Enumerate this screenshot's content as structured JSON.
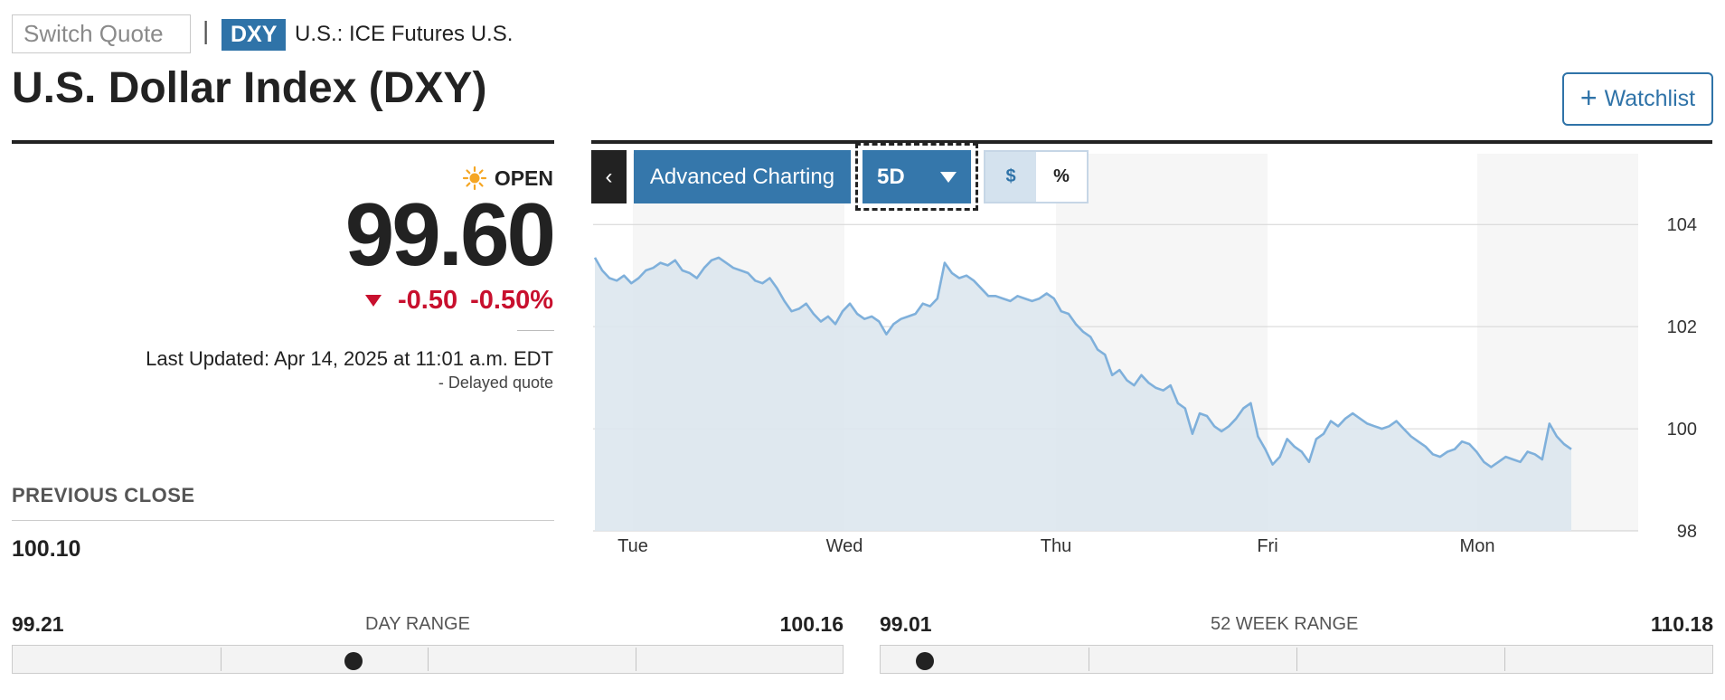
{
  "header": {
    "switch_quote_placeholder": "Switch Quote",
    "separator": "|",
    "ticker": "DXY",
    "exchange": "U.S.: ICE Futures U.S.",
    "title": "U.S. Dollar Index (DXY)",
    "watchlist_plus": "+",
    "watchlist_label": "Watchlist"
  },
  "quote": {
    "status": "OPEN",
    "price": "99.60",
    "change": "-0.50",
    "change_percent": "-0.50%",
    "last_updated": "Last Updated: Apr 14, 2025 at 11:01 a.m. EDT",
    "delayed": "-  Delayed quote"
  },
  "previous_close": {
    "label": "PREVIOUS CLOSE",
    "value": "100.10"
  },
  "day_range": {
    "low": "99.21",
    "label": "DAY RANGE",
    "high": "100.16",
    "current": 99.6
  },
  "week52_range": {
    "low": "99.01",
    "label": "52 WEEK RANGE",
    "high": "110.18",
    "current": 99.6
  },
  "chart_controls": {
    "back": "‹",
    "advanced": "Advanced Charting",
    "period": "5D",
    "unit_dollar": "$",
    "unit_percent": "%"
  },
  "colors": {
    "accent": "#2f73a8",
    "negative": "#c8102e",
    "line": "#7fb0db",
    "fill": "#dde7ee",
    "sun": "#f5a623"
  },
  "icons": {
    "status": "sun-icon",
    "change": "down-triangle-icon",
    "back": "chevron-left-icon",
    "dropdown": "chevron-down-icon",
    "watchlist": "plus-icon"
  },
  "chart_data": {
    "type": "area",
    "x_labels": [
      "Tue",
      "Wed",
      "Thu",
      "Fri",
      "Mon"
    ],
    "y_ticks": [
      104,
      102,
      100,
      98
    ],
    "ylim": [
      98,
      104.5
    ],
    "grid": true,
    "series": [
      {
        "values": [
          103.35,
          103.1,
          102.95,
          102.9,
          103.0,
          102.85,
          102.95,
          103.1,
          103.15,
          103.25,
          103.2,
          103.3,
          103.1,
          103.05,
          102.95,
          103.15,
          103.3,
          103.35,
          103.25,
          103.15,
          103.1,
          103.05,
          102.9,
          102.85,
          102.95,
          102.75,
          102.5,
          102.3,
          102.35,
          102.45,
          102.25,
          102.1,
          102.2,
          102.05,
          102.3,
          102.45,
          102.25,
          102.15,
          102.2,
          102.1,
          101.85,
          102.05,
          102.15,
          102.2,
          102.25,
          102.45,
          102.4,
          102.55,
          103.25,
          103.05,
          102.95,
          103.0,
          102.9,
          102.75,
          102.6,
          102.6,
          102.55,
          102.5,
          102.6,
          102.55,
          102.5,
          102.55,
          102.65,
          102.55,
          102.3,
          102.25,
          102.05,
          101.9,
          101.8,
          101.55,
          101.45,
          101.05,
          101.15,
          100.95,
          100.85,
          101.05,
          100.9,
          100.8,
          100.75,
          100.85,
          100.5,
          100.4,
          99.9,
          100.3,
          100.25,
          100.05,
          99.95,
          100.05,
          100.2,
          100.4,
          100.5,
          99.85,
          99.6,
          99.3,
          99.45,
          99.8,
          99.65,
          99.55,
          99.35,
          99.8,
          99.9,
          100.15,
          100.05,
          100.2,
          100.3,
          100.2,
          100.1,
          100.05,
          100.0,
          100.05,
          100.15,
          100.0,
          99.85,
          99.75,
          99.65,
          99.5,
          99.45,
          99.55,
          99.6,
          99.75,
          99.7,
          99.55,
          99.35,
          99.25,
          99.35,
          99.45,
          99.4,
          99.35,
          99.55,
          99.5,
          99.4,
          100.1,
          99.85,
          99.7,
          99.6
        ]
      }
    ]
  }
}
